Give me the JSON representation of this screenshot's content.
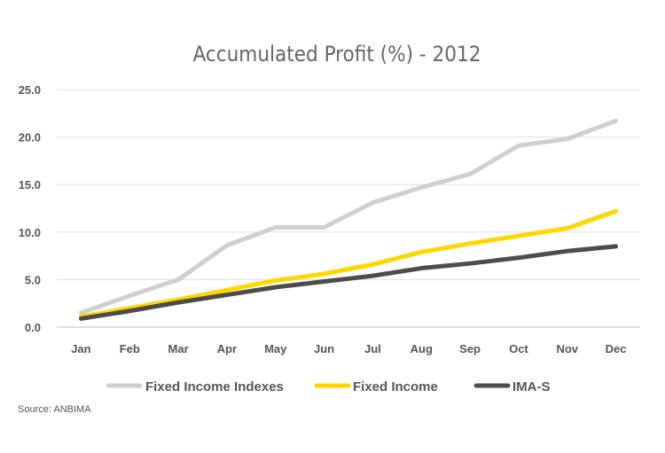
{
  "chart_data": {
    "type": "line",
    "title": "Accumulated Profit (%) - 2012",
    "xlabel": "",
    "ylabel": "",
    "categories": [
      "Jan",
      "Feb",
      "Mar",
      "Apr",
      "May",
      "Jun",
      "Jul",
      "Aug",
      "Sep",
      "Oct",
      "Nov",
      "Dec"
    ],
    "ylim": [
      0,
      25
    ],
    "yticks": [
      "0.0",
      "5.0",
      "10.0",
      "15.0",
      "20.0",
      "25.0"
    ],
    "grid": true,
    "legend_position": "bottom",
    "series": [
      {
        "name": "Fixed Income Indexes",
        "color": "#d0d0d0",
        "values": [
          1.5,
          3.3,
          5.0,
          8.6,
          10.5,
          10.5,
          13.1,
          14.7,
          16.1,
          19.1,
          19.8,
          21.7
        ]
      },
      {
        "name": "Fixed Income",
        "color": "#ffd700",
        "values": [
          1.1,
          2.0,
          2.9,
          3.9,
          4.9,
          5.6,
          6.6,
          7.9,
          8.8,
          9.6,
          10.4,
          12.2
        ]
      },
      {
        "name": "IMA-S",
        "color": "#4d4d4d",
        "values": [
          0.9,
          1.7,
          2.6,
          3.4,
          4.2,
          4.8,
          5.4,
          6.2,
          6.7,
          7.3,
          8.0,
          8.5
        ]
      }
    ]
  },
  "source": "Source: ANBIMA"
}
